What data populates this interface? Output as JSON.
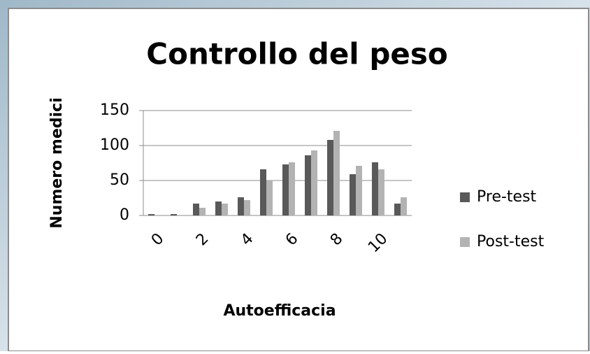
{
  "chart_data": {
    "type": "bar",
    "title": "Controllo del peso",
    "x_label": "Autoefficacia",
    "y_label": "Numero medici",
    "categories": [
      "0",
      null,
      "2",
      null,
      "4",
      null,
      "6",
      null,
      "8",
      null,
      "10",
      null
    ],
    "series": [
      {
        "name": "Pre-test",
        "color": "#595959",
        "values": [
          2,
          2,
          17,
          20,
          26,
          66,
          73,
          86,
          108,
          59,
          76,
          17
        ]
      },
      {
        "name": "Post-test",
        "color": "#b3b3b3",
        "values": [
          0,
          0,
          11,
          17,
          22,
          50,
          76,
          93,
          121,
          71,
          66,
          26
        ]
      }
    ],
    "ylim": [
      0,
      150
    ],
    "yticks": [
      0,
      50,
      100,
      150
    ],
    "grid": true,
    "legend": "right"
  }
}
